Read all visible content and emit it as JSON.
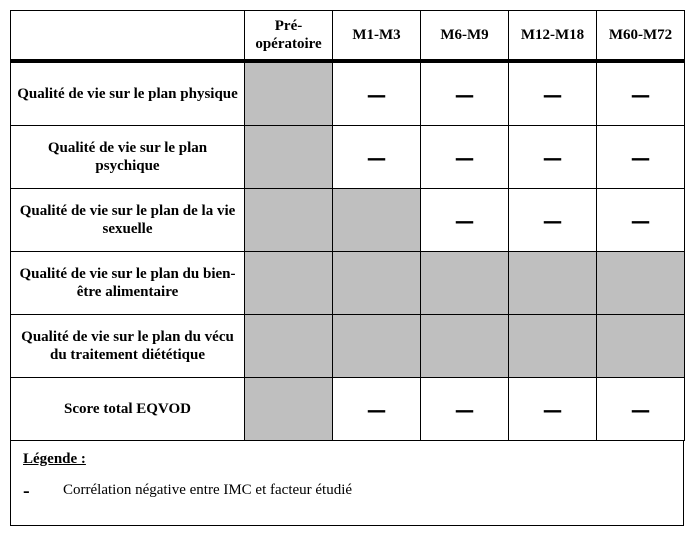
{
  "colors": {
    "shaded": "#bfbfbf",
    "white": "#ffffff",
    "border": "#000000"
  },
  "mark_symbol": "–",
  "columns": [
    "",
    "Pré-opératoire",
    "M1-M3",
    "M6-M9",
    "M12-M18",
    "M60-M72"
  ],
  "rows": [
    {
      "label": "Qualité de vie sur le plan physique",
      "cells": [
        {
          "shaded": true,
          "mark": false
        },
        {
          "shaded": false,
          "mark": true
        },
        {
          "shaded": false,
          "mark": true
        },
        {
          "shaded": false,
          "mark": true
        },
        {
          "shaded": false,
          "mark": true
        }
      ]
    },
    {
      "label": "Qualité de vie sur le plan psychique",
      "cells": [
        {
          "shaded": true,
          "mark": false
        },
        {
          "shaded": false,
          "mark": true
        },
        {
          "shaded": false,
          "mark": true
        },
        {
          "shaded": false,
          "mark": true
        },
        {
          "shaded": false,
          "mark": true
        }
      ]
    },
    {
      "label": "Qualité de vie sur le plan de la vie sexuelle",
      "cells": [
        {
          "shaded": true,
          "mark": false
        },
        {
          "shaded": true,
          "mark": false
        },
        {
          "shaded": false,
          "mark": true
        },
        {
          "shaded": false,
          "mark": true
        },
        {
          "shaded": false,
          "mark": true
        }
      ]
    },
    {
      "label": "Qualité de vie sur le plan du bien-être alimentaire",
      "cells": [
        {
          "shaded": true,
          "mark": false
        },
        {
          "shaded": true,
          "mark": false
        },
        {
          "shaded": true,
          "mark": false
        },
        {
          "shaded": true,
          "mark": false
        },
        {
          "shaded": true,
          "mark": false
        }
      ]
    },
    {
      "label": "Qualité de vie sur le plan du vécu du traitement diététique",
      "cells": [
        {
          "shaded": true,
          "mark": false
        },
        {
          "shaded": true,
          "mark": false
        },
        {
          "shaded": true,
          "mark": false
        },
        {
          "shaded": true,
          "mark": false
        },
        {
          "shaded": true,
          "mark": false
        }
      ]
    },
    {
      "label": "Score total EQVOD",
      "cells": [
        {
          "shaded": true,
          "mark": false
        },
        {
          "shaded": false,
          "mark": true
        },
        {
          "shaded": false,
          "mark": true
        },
        {
          "shaded": false,
          "mark": true
        },
        {
          "shaded": false,
          "mark": true
        }
      ]
    }
  ],
  "legend": {
    "title": "Légende :",
    "item_symbol": "-",
    "item_text": "Corrélation négative entre IMC et facteur étudié"
  }
}
